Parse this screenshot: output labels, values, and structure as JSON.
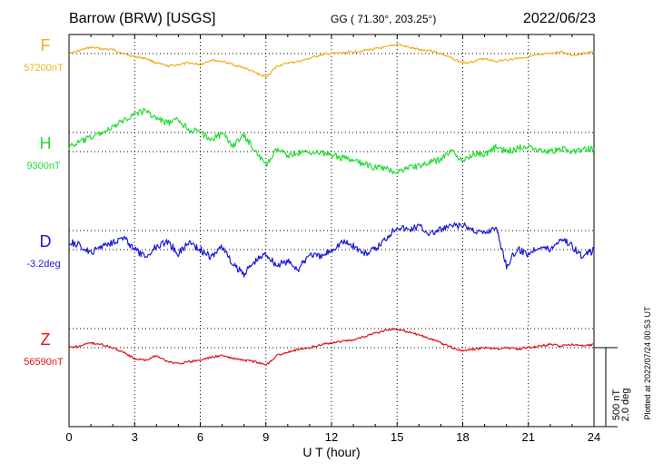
{
  "header": {
    "station": "Barrow (BRW)  [USGS]",
    "coords": "GG ( 71.30°, 203.25°)",
    "date": "2022/06/23"
  },
  "plotted_note": "Plotted at 2022/07/24 00:53 UT",
  "scale_bar": {
    "label1": "500 nT",
    "label2": "2.0 deg"
  },
  "chart_data": {
    "type": "line",
    "title": "Barrow (BRW)  [USGS]",
    "xlabel": "U T (hour)",
    "xlim": [
      0,
      24
    ],
    "xticks": [
      0,
      3,
      6,
      9,
      12,
      15,
      18,
      21,
      24
    ],
    "xtick_labels": [
      "0",
      "3",
      "6",
      "9",
      "12",
      "15",
      "18",
      "21",
      "24"
    ],
    "grid": true,
    "scale_units_per_bar": {
      "nT": 500,
      "deg": 2.0
    },
    "series": [
      {
        "name": "F",
        "baseline_label": "57200nT",
        "baseline": 57200,
        "unit": "nT",
        "color": "#f0b020",
        "x": [
          0,
          0.5,
          1,
          1.5,
          2,
          2.5,
          3,
          3.5,
          4,
          4.5,
          5,
          5.5,
          6,
          6.5,
          7,
          7.5,
          8,
          8.5,
          9,
          9.5,
          10,
          10.5,
          11,
          11.5,
          12,
          12.5,
          13,
          13.5,
          14,
          14.5,
          15,
          15.5,
          16,
          16.5,
          17,
          17.5,
          18,
          18.5,
          19,
          19.5,
          20,
          20.5,
          21,
          21.5,
          22,
          22.5,
          23,
          23.5,
          24
        ],
        "y": [
          57200,
          57220,
          57240,
          57230,
          57225,
          57200,
          57180,
          57170,
          57140,
          57120,
          57130,
          57140,
          57130,
          57160,
          57150,
          57130,
          57110,
          57080,
          57050,
          57120,
          57140,
          57150,
          57170,
          57190,
          57200,
          57205,
          57210,
          57220,
          57230,
          57240,
          57260,
          57240,
          57225,
          57220,
          57200,
          57170,
          57140,
          57150,
          57170,
          57150,
          57160,
          57170,
          57180,
          57190,
          57200,
          57210,
          57190,
          57200,
          57210
        ]
      },
      {
        "name": "H",
        "baseline_label": "9300nT",
        "baseline": 9300,
        "unit": "nT",
        "color": "#22dd33",
        "x": [
          0,
          0.5,
          1,
          1.5,
          2,
          2.5,
          3,
          3.5,
          4,
          4.5,
          5,
          5.5,
          6,
          6.5,
          7,
          7.5,
          8,
          8.5,
          9,
          9.5,
          10,
          10.5,
          11,
          11.5,
          12,
          12.5,
          13,
          13.5,
          14,
          14.5,
          15,
          15.5,
          16,
          16.5,
          17,
          17.5,
          18,
          18.5,
          19,
          19.5,
          20,
          20.5,
          21,
          21.5,
          22,
          22.5,
          23,
          23.5,
          24
        ],
        "y": [
          9330,
          9360,
          9390,
          9420,
          9450,
          9500,
          9540,
          9560,
          9510,
          9480,
          9500,
          9440,
          9420,
          9380,
          9410,
          9340,
          9400,
          9310,
          9210,
          9310,
          9280,
          9290,
          9300,
          9290,
          9280,
          9260,
          9240,
          9220,
          9200,
          9190,
          9170,
          9200,
          9210,
          9230,
          9250,
          9310,
          9230,
          9290,
          9280,
          9330,
          9300,
          9320,
          9340,
          9310,
          9300,
          9320,
          9300,
          9310,
          9320
        ]
      },
      {
        "name": "D",
        "baseline_label": "-3.2deg",
        "baseline": -3.2,
        "unit": "deg",
        "color": "#1a1ad6",
        "x": [
          0,
          0.5,
          1,
          1.5,
          2,
          2.5,
          3,
          3.5,
          4,
          4.5,
          5,
          5.5,
          6,
          6.5,
          7,
          7.5,
          8,
          8.5,
          9,
          9.5,
          10,
          10.5,
          11,
          11.5,
          12,
          12.5,
          13,
          13.5,
          14,
          14.5,
          15,
          15.5,
          16,
          16.5,
          17,
          17.5,
          18,
          18.5,
          19,
          19.5,
          20,
          20.5,
          21,
          21.5,
          22,
          22.5,
          23,
          23.5,
          24
        ],
        "y": [
          -3.0,
          -3.1,
          -3.3,
          -3.1,
          -3.0,
          -2.9,
          -3.2,
          -3.4,
          -3.1,
          -3.0,
          -3.3,
          -3.0,
          -3.2,
          -3.4,
          -3.1,
          -3.6,
          -3.8,
          -3.5,
          -3.3,
          -3.6,
          -3.5,
          -3.7,
          -3.3,
          -3.4,
          -3.2,
          -3.0,
          -3.1,
          -3.3,
          -3.2,
          -2.9,
          -2.6,
          -2.7,
          -2.6,
          -2.8,
          -2.7,
          -2.6,
          -2.6,
          -2.7,
          -2.8,
          -2.6,
          -3.6,
          -3.2,
          -3.3,
          -3.1,
          -3.2,
          -2.9,
          -3.1,
          -3.4,
          -3.2
        ]
      },
      {
        "name": "Z",
        "baseline_label": "56590nT",
        "baseline": 56590,
        "unit": "nT",
        "color": "#e01515",
        "x": [
          0,
          0.5,
          1,
          1.5,
          2,
          2.5,
          3,
          3.5,
          4,
          4.5,
          5,
          5.5,
          6,
          6.5,
          7,
          7.5,
          8,
          8.5,
          9,
          9.5,
          10,
          10.5,
          11,
          11.5,
          12,
          12.5,
          13,
          13.5,
          14,
          14.5,
          15,
          15.5,
          16,
          16.5,
          17,
          17.5,
          18,
          18.5,
          19,
          19.5,
          20,
          20.5,
          21,
          21.5,
          22,
          22.5,
          23,
          23.5,
          24
        ],
        "y": [
          56590,
          56600,
          56620,
          56610,
          56590,
          56560,
          56520,
          56510,
          56540,
          56500,
          56490,
          56500,
          56510,
          56530,
          56540,
          56520,
          56510,
          56500,
          56480,
          56540,
          56560,
          56580,
          56590,
          56610,
          56620,
          56630,
          56640,
          56660,
          56680,
          56700,
          56710,
          56690,
          56670,
          56650,
          56620,
          56590,
          56570,
          56580,
          56590,
          56580,
          56590,
          56580,
          56590,
          56600,
          56610,
          56600,
          56610,
          56600,
          56610
        ]
      }
    ]
  }
}
